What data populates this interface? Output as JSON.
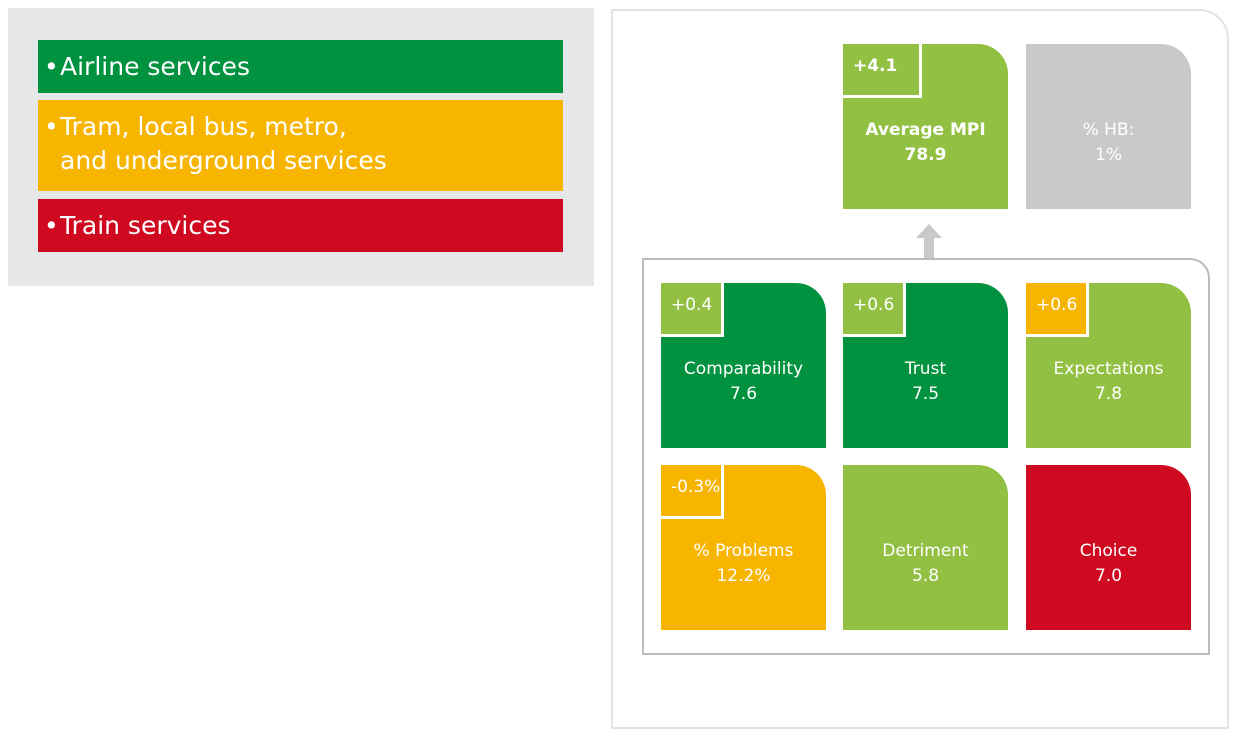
{
  "legend": [
    {
      "lines": [
        "Airline services"
      ],
      "color": "#00923f"
    },
    {
      "lines": [
        "Tram, local bus, metro,",
        "and underground services"
      ],
      "color": "#f7b500"
    },
    {
      "lines": [
        "Train services"
      ],
      "color": "#cf0a20"
    }
  ],
  "summary": [
    {
      "label": "Average MPI",
      "value": "78.9",
      "delta": "+4.1",
      "color": "#92c043",
      "delta_color": "#92c043",
      "bold": true
    },
    {
      "label": "% HB:",
      "value": "1%",
      "color": "#c8c9cb"
    }
  ],
  "tiles": [
    {
      "label": "Comparability",
      "value": "7.6",
      "delta": "+0.4",
      "color": "#00923f",
      "delta_color": "#92c043"
    },
    {
      "label": "Trust",
      "value": "7.5",
      "delta": "+0.6",
      "color": "#00923f",
      "delta_color": "#92c043"
    },
    {
      "label": "Expectations",
      "value": "7.8",
      "delta": "+0.6",
      "color": "#92c043",
      "delta_color": "#f7b500"
    },
    {
      "label": "% Problems",
      "value": "12.2%",
      "delta": "-0.3%",
      "color": "#f7b500",
      "delta_color": "#f7b500"
    },
    {
      "label": "Detriment",
      "value": "5.8",
      "color": "#92c043"
    },
    {
      "label": "Choice",
      "value": "7.0",
      "color": "#cf0a20"
    }
  ]
}
